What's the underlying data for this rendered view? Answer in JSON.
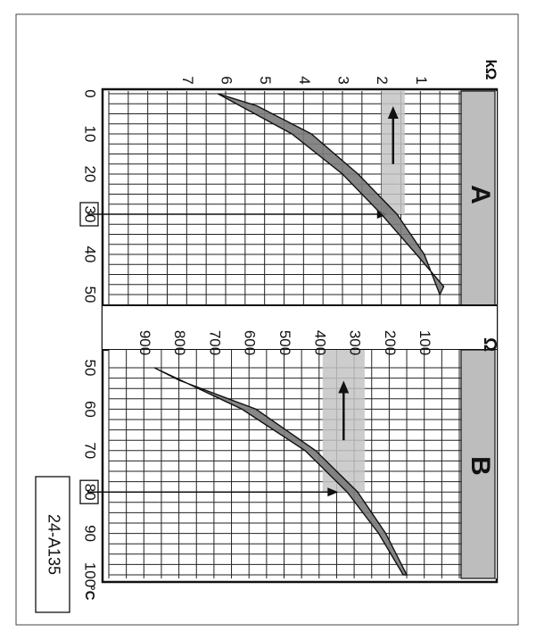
{
  "figure_code": "24-A135",
  "chart_data": [
    {
      "type": "area",
      "panel_label": "A",
      "unit_resistance": "kΩ",
      "unit_temperature": "",
      "x_ticks": [
        "0",
        "10",
        "20",
        "30",
        "40",
        "50"
      ],
      "y_ticks": [
        "1",
        "2",
        "3",
        "4",
        "5",
        "6",
        "7"
      ],
      "xlim": [
        0,
        50
      ],
      "ylim": [
        0,
        7
      ],
      "band_upper": {
        "x": [
          0,
          10,
          20,
          30,
          40,
          48
        ],
        "y": [
          6.2,
          4.3,
          3.0,
          2.0,
          1.1,
          0.4
        ]
      },
      "band_lower": {
        "x": [
          3,
          10,
          20,
          30,
          40,
          50
        ],
        "y": [
          5.2,
          3.8,
          2.6,
          1.6,
          0.9,
          0.5
        ]
      },
      "highlight_temp": "30",
      "highlight_temp_value": 30,
      "highlight_resistance_range": [
        1.4,
        2.0
      ],
      "grid": true
    },
    {
      "type": "area",
      "panel_label": "B",
      "unit_resistance": "Ω",
      "unit_temperature": "°C",
      "x_ticks": [
        "50",
        "60",
        "70",
        "80",
        "90",
        "100"
      ],
      "y_ticks": [
        "100",
        "200",
        "300",
        "400",
        "500",
        "600",
        "700",
        "800",
        "900"
      ],
      "xlim": [
        50,
        100
      ],
      "ylim": [
        0,
        900
      ],
      "band_upper": {
        "x": [
          50,
          60,
          70,
          80,
          90,
          100
        ],
        "y": [
          870,
          620,
          440,
          320,
          230,
          160
        ]
      },
      "band_lower": {
        "x": [
          53,
          60,
          70,
          80,
          90,
          100
        ],
        "y": [
          800,
          580,
          410,
          290,
          210,
          150
        ]
      },
      "highlight_temp": "80",
      "highlight_temp_value": 80,
      "highlight_resistance_range": [
        270,
        390
      ],
      "grid": true
    }
  ],
  "colors": {
    "band": "#7a7a7a",
    "highlight": "#c4c4c4",
    "grid": "#222222",
    "label_bar": "#bdbdbd"
  }
}
